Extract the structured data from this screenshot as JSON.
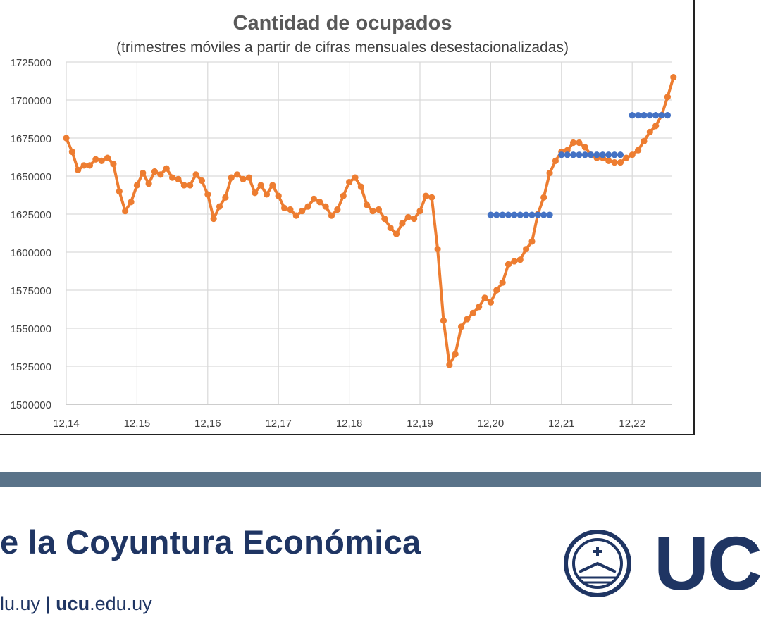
{
  "chart_data": {
    "type": "line",
    "title": "Cantidad de ocupados",
    "subtitle": "(trimestres móviles a partir de cifras mensuales desestacionalizadas)",
    "xlabel": "",
    "ylabel": "",
    "ylim": [
      1500000,
      1725000
    ],
    "yticks": [
      1500000,
      1525000,
      1550000,
      1575000,
      1600000,
      1625000,
      1650000,
      1675000,
      1700000,
      1725000
    ],
    "xtick_labels": [
      "12,14",
      "12,15",
      "12,16",
      "12,17",
      "12,18",
      "12,19",
      "12,20",
      "12,21",
      "12,22"
    ],
    "grid": true,
    "series": [
      {
        "color": "#ed7d31",
        "style": "line-markers",
        "values": [
          1675000,
          1666000,
          1654000,
          1657000,
          1657000,
          1661000,
          1660000,
          1662000,
          1658000,
          1640000,
          1627000,
          1633000,
          1644000,
          1652000,
          1645000,
          1653000,
          1651000,
          1655000,
          1649000,
          1648000,
          1644000,
          1644000,
          1651000,
          1647000,
          1638000,
          1622000,
          1630000,
          1636000,
          1649000,
          1651000,
          1648000,
          1649000,
          1639000,
          1644000,
          1638000,
          1644000,
          1637000,
          1629000,
          1628000,
          1624000,
          1627000,
          1630000,
          1635000,
          1633000,
          1630000,
          1624000,
          1628000,
          1637000,
          1646000,
          1649000,
          1643000,
          1631000,
          1627000,
          1628000,
          1622000,
          1616000,
          1612000,
          1619000,
          1623000,
          1622000,
          1627000,
          1637000,
          1636000,
          1602000,
          1555000,
          1526000,
          1533000,
          1551000,
          1556000,
          1560000,
          1564000,
          1570000,
          1567000,
          1575000,
          1580000,
          1592000,
          1594000,
          1595000,
          1602000,
          1607000,
          1625000,
          1636000,
          1652000,
          1660000,
          1666000,
          1667000,
          1672000,
          1672000,
          1669000,
          1664000,
          1662000,
          1662000,
          1660000,
          1659000,
          1659000,
          1662000,
          1664000,
          1667000,
          1673000,
          1679000,
          1683000,
          1690000,
          1702000,
          1715000
        ]
      },
      {
        "color": "#4472c4",
        "style": "markers",
        "x_start": 72,
        "value": 1624500,
        "count": 11
      },
      {
        "color": "#4472c4",
        "style": "markers",
        "x_start": 84,
        "value": 1664000,
        "count": 11
      },
      {
        "color": "#4472c4",
        "style": "markers",
        "x_start": 96,
        "value": 1690000,
        "count": 7
      }
    ]
  },
  "footer": {
    "title": "e la Coyuntura Económica",
    "links_prefix": "lu.uy  |  ",
    "links_bold": "ucu",
    "links_suffix": ".edu.uy",
    "logo_text": "UC"
  }
}
